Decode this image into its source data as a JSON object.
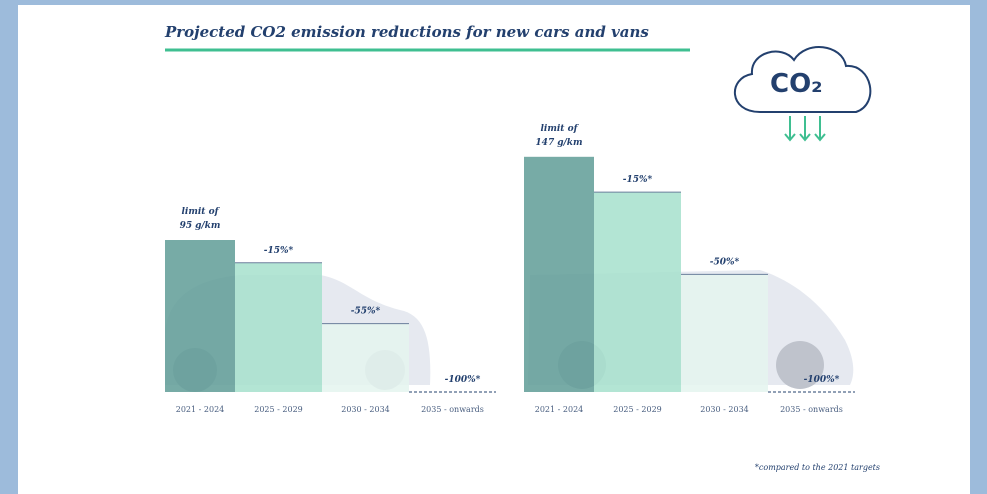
{
  "title": "Projected CO2 emission reductions for new cars and vans",
  "icon_text": "CO₂",
  "footnote": "*compared to the 2021 targets",
  "chart_data": [
    {
      "type": "bar",
      "baseline": {
        "category": "2021 - 2024",
        "label": "limit of",
        "value": 95,
        "unit": "g/km",
        "color": "#5f9c97"
      },
      "categories": [
        "2025 - 2029",
        "2030 - 2034",
        "2035 - onwards"
      ],
      "values": [
        -15,
        -55,
        -100
      ],
      "value_labels": [
        "-15%*",
        "-55%*",
        "-100%*"
      ],
      "colors": [
        "#a6e0cd",
        "#e4f4ef",
        "#e4f4ef"
      ]
    },
    {
      "type": "bar",
      "baseline": {
        "category": "2021 - 2024",
        "label": "limit of",
        "value": 147,
        "unit": "g/km",
        "color": "#5f9c97"
      },
      "categories": [
        "2025 - 2029",
        "2030 - 2034",
        "2035 - onwards"
      ],
      "values": [
        -15,
        -50,
        -100
      ],
      "value_labels": [
        "-15%*",
        "-50%*",
        "-100%*"
      ],
      "colors": [
        "#a6e0cd",
        "#e4f4ef",
        "#e4f4ef"
      ]
    }
  ]
}
